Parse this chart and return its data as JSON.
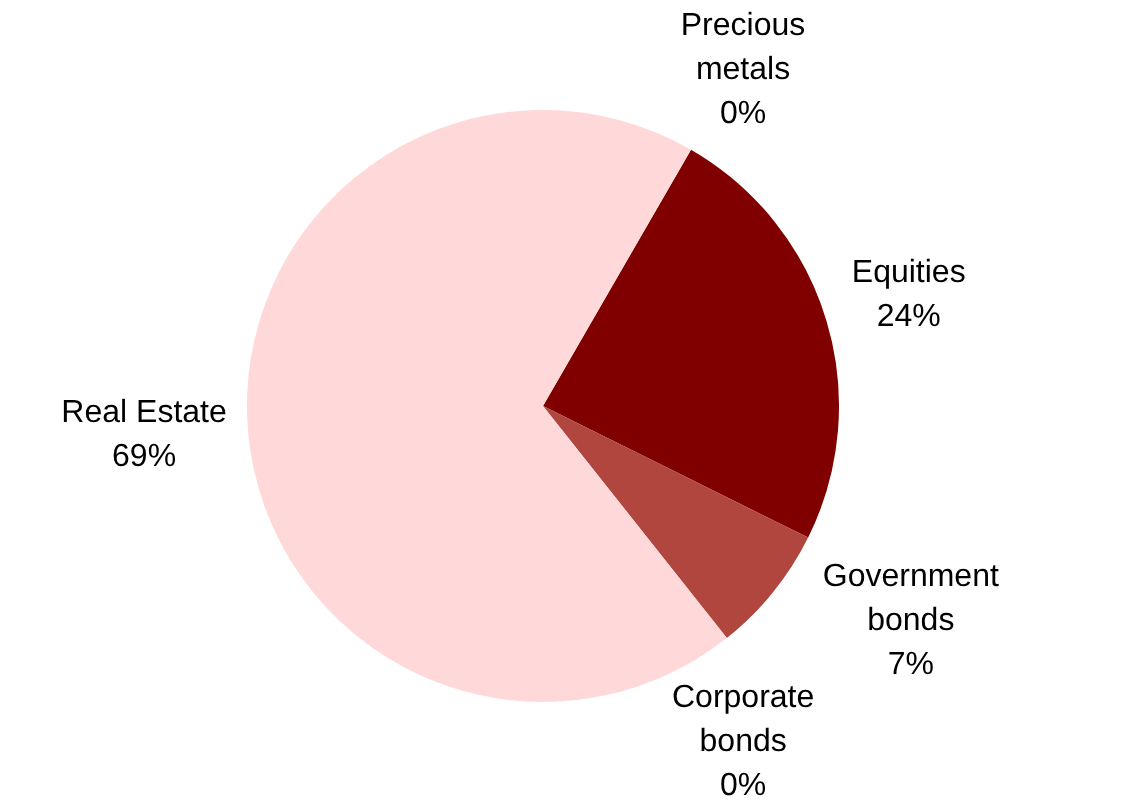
{
  "chart_data": {
    "type": "pie",
    "categories": [
      "Precious metals",
      "Equities",
      "Government bonds",
      "Corporate bonds",
      "Real Estate"
    ],
    "values": [
      0,
      24,
      7,
      0,
      69
    ],
    "value_labels": [
      "0%",
      "24%",
      "7%",
      "0%",
      "69%"
    ],
    "colors": [
      "#d9a0a0",
      "#800000",
      "#b0463d",
      "#e07070",
      "#ffd9d9"
    ],
    "legend": false
  }
}
